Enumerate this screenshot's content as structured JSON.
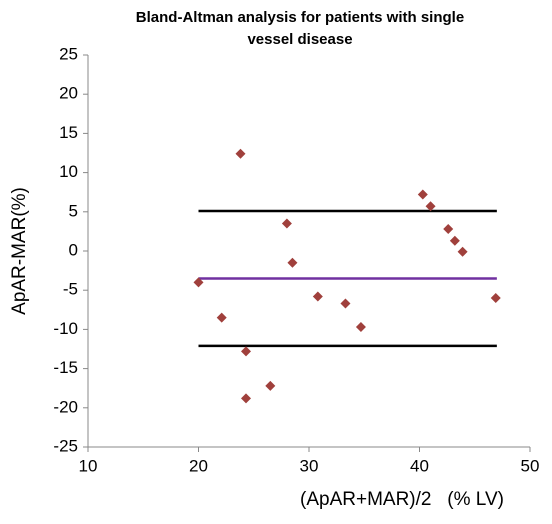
{
  "chart_data": {
    "type": "scatter",
    "title": [
      "Bland-Altman analysis for patients with single",
      "vessel disease"
    ],
    "xlabel": "(ApAR+MAR)/2   (% LV)",
    "ylabel": "ApAR-MAR(%)",
    "x": [
      20,
      22.1,
      23.8,
      24.3,
      24.3,
      26.5,
      28,
      28.5,
      30.8,
      33.3,
      34.7,
      40.3,
      41,
      42.6,
      43.2,
      43.9,
      46.9
    ],
    "values": [
      -4,
      -8.5,
      12.4,
      -12.8,
      -18.8,
      -17.2,
      3.5,
      -1.5,
      -5.8,
      -6.7,
      -9.7,
      7.2,
      5.7,
      2.8,
      1.3,
      -0.1,
      -6
    ],
    "color": "#a0403c",
    "reference_lines": [
      {
        "value": 5.1,
        "color": "#000000"
      },
      {
        "value": -3.5,
        "color": "#7030a0"
      },
      {
        "value": -12.1,
        "color": "#000000"
      }
    ],
    "reference_span": [
      20,
      47
    ],
    "xlim": [
      10,
      50
    ],
    "xticks": [
      10,
      20,
      30,
      40,
      50
    ],
    "ylim": [
      -25,
      25
    ],
    "yticks": [
      -25,
      -20,
      -15,
      -10,
      -5,
      0,
      5,
      10,
      15,
      20,
      25
    ],
    "grid": false
  }
}
